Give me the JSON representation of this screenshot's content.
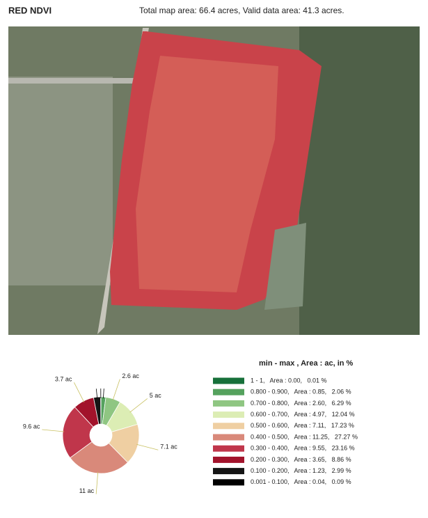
{
  "header": {
    "title": "RED NDVI",
    "summary": "Total map area: 66.4 acres, Valid data area: 41.3 acres."
  },
  "chart_data": {
    "type": "pie",
    "legend_title": "min - max ,  Area : ac, in %",
    "categories": [
      "1 - 1,   Area : 0.00,   0.01 %",
      "0.800 - 0.900,   Area : 0.85,   2.06 %",
      "0.700 - 0.800,   Area : 2.60,   6.29 %",
      "0.600 - 0.700,   Area : 4.97,   12.04 %",
      "0.500 - 0.600,   Area : 7.11,   17.23 %",
      "0.400 - 0.500,   Area : 11.25,   27.27 %",
      "0.300 - 0.400,   Area : 9.55,   23.16 %",
      "0.200 - 0.300,   Area : 3.65,   8.86 %",
      "0.100 - 0.200,   Area : 1.23,   2.99 %",
      "0.001 - 0.100,   Area : 0.04,   0.09 %"
    ],
    "values": [
      0.0,
      0.85,
      2.6,
      4.97,
      7.11,
      11.25,
      9.55,
      3.65,
      1.23,
      0.04
    ],
    "value_labels": [
      null,
      null,
      "2.6 ac",
      "5 ac",
      "7.1 ac",
      "11 ac",
      "9.6 ac",
      "3.7 ac",
      null,
      null
    ],
    "colors": [
      "#17703a",
      "#55a25e",
      "#8fc682",
      "#dcedb4",
      "#efcfa2",
      "#d9897a",
      "#c0364b",
      "#a2132b",
      "#151515",
      "#000000"
    ]
  }
}
